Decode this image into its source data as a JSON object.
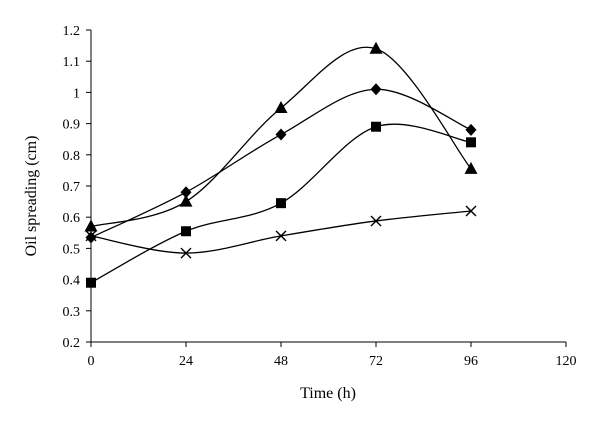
{
  "chart_data": {
    "type": "line",
    "title": "",
    "xlabel": "Time (h)",
    "ylabel": "Oil spreading (cm)",
    "xlim": [
      0,
      120
    ],
    "ylim": [
      0.2,
      1.2
    ],
    "x_ticks": [
      0,
      24,
      48,
      72,
      96,
      120
    ],
    "y_ticks": [
      0.2,
      0.3,
      0.4,
      0.5,
      0.6,
      0.7,
      0.8,
      0.9,
      1,
      1.1,
      1.2
    ],
    "x_tick_labels": [
      "0",
      "24",
      "48",
      "72",
      "96",
      "120"
    ],
    "y_tick_labels": [
      "0.2",
      "0.3",
      "0.4",
      "0.5",
      "0.6",
      "0.7",
      "0.8",
      "0.9",
      "1",
      "1.1",
      "1.2"
    ],
    "grid": false,
    "legend": "none",
    "x": [
      0,
      24,
      48,
      72,
      96
    ],
    "series": [
      {
        "marker": "triangle",
        "values": [
          0.57,
          0.65,
          0.95,
          1.14,
          0.755
        ]
      },
      {
        "marker": "diamond",
        "values": [
          0.535,
          0.68,
          0.865,
          1.01,
          0.88
        ]
      },
      {
        "marker": "square",
        "values": [
          0.39,
          0.555,
          0.645,
          0.89,
          0.84
        ]
      },
      {
        "marker": "cross",
        "values": [
          0.54,
          0.485,
          0.54,
          0.588,
          0.62
        ]
      }
    ],
    "line_color": "#000000",
    "marker_color": "#000000"
  }
}
